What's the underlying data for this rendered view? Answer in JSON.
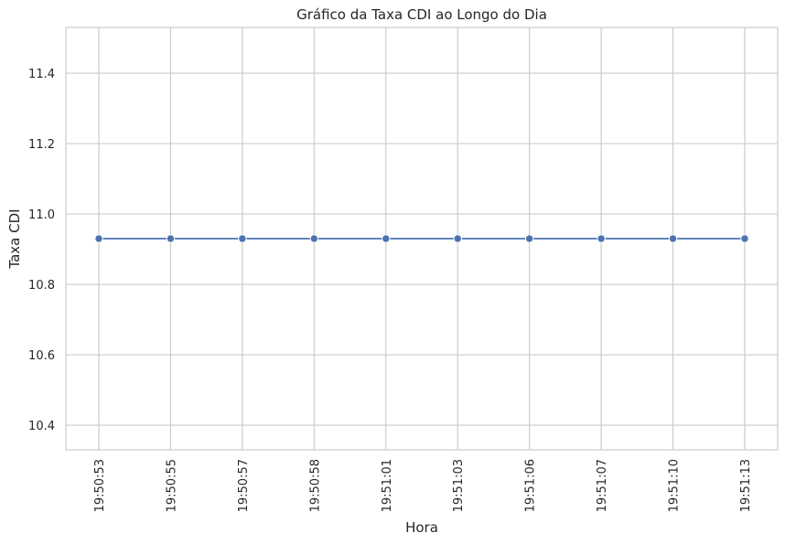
{
  "chart_data": {
    "type": "line",
    "title": "Gráfico da Taxa CDI ao Longo do Dia",
    "xlabel": "Hora",
    "ylabel": "Taxa CDI",
    "categories": [
      "19:50:53",
      "19:50:55",
      "19:50:57",
      "19:50:58",
      "19:51:01",
      "19:51:03",
      "19:51:06",
      "19:51:07",
      "19:51:10",
      "19:51:13"
    ],
    "series": [
      {
        "values": [
          10.93,
          10.93,
          10.93,
          10.93,
          10.93,
          10.93,
          10.93,
          10.93,
          10.93,
          10.93
        ]
      }
    ],
    "yticks": [
      "10.4",
      "10.6",
      "10.8",
      "11.0",
      "11.2",
      "11.4"
    ],
    "ylim": [
      10.33,
      11.53
    ],
    "grid": true,
    "markers": true,
    "colors": {
      "line": "#4c72b0",
      "grid": "#cccccc",
      "axes_edge": "#cccccc",
      "background": "#ffffff"
    }
  }
}
